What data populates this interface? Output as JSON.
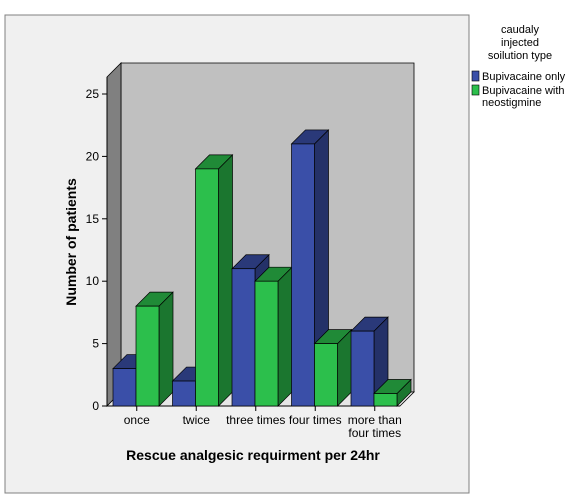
{
  "chart_data": {
    "type": "bar",
    "categories": [
      "once",
      "twice",
      "three times",
      "four times",
      "more than four times"
    ],
    "category_lines": [
      [
        "once"
      ],
      [
        "twice"
      ],
      [
        "three times"
      ],
      [
        "four times"
      ],
      [
        "more than",
        "four times"
      ]
    ],
    "series": [
      {
        "name": "Bupivacaine only",
        "name_lines": [
          "Bupivacaine only"
        ],
        "color": "#3a4fa8",
        "values": [
          3,
          2,
          11,
          21,
          6
        ]
      },
      {
        "name": "Bupivacaine with neostigmine",
        "name_lines": [
          "Bupivacaine with",
          "neostigmine"
        ],
        "color": "#2cbf4c",
        "values": [
          8,
          19,
          10,
          5,
          1
        ]
      }
    ],
    "xlabel": "Rescue analgesic requirment per 24hr",
    "ylabel": "Number of patients",
    "ylim": [
      0,
      25
    ],
    "yticks": [
      0,
      5,
      10,
      15,
      20,
      25
    ],
    "legend_title_lines": [
      "caudaly",
      "injected",
      "soilution type"
    ],
    "legend_position": "top-right",
    "grid": false,
    "style": "3d"
  }
}
